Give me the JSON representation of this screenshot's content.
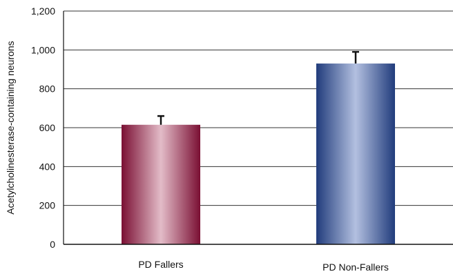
{
  "chart_data": {
    "type": "bar",
    "title": "",
    "xlabel": "",
    "ylabel": "Acetylcholinesterase-containing neurons",
    "ylim": [
      0,
      1200
    ],
    "yticks": [
      0,
      200,
      400,
      600,
      800,
      1000,
      1200
    ],
    "ytick_labels": [
      "0",
      "200",
      "400",
      "600",
      "800",
      "1,000",
      "1,200"
    ],
    "grid": true,
    "categories": [
      "PD Fallers",
      "PD Non-Fallers"
    ],
    "values": [
      615,
      930
    ],
    "errors": [
      45,
      60
    ],
    "colors": [
      "#7a0f33",
      "#213c7c"
    ],
    "highlight_colors": [
      "#e3bcc8",
      "#b3c0e0"
    ]
  }
}
